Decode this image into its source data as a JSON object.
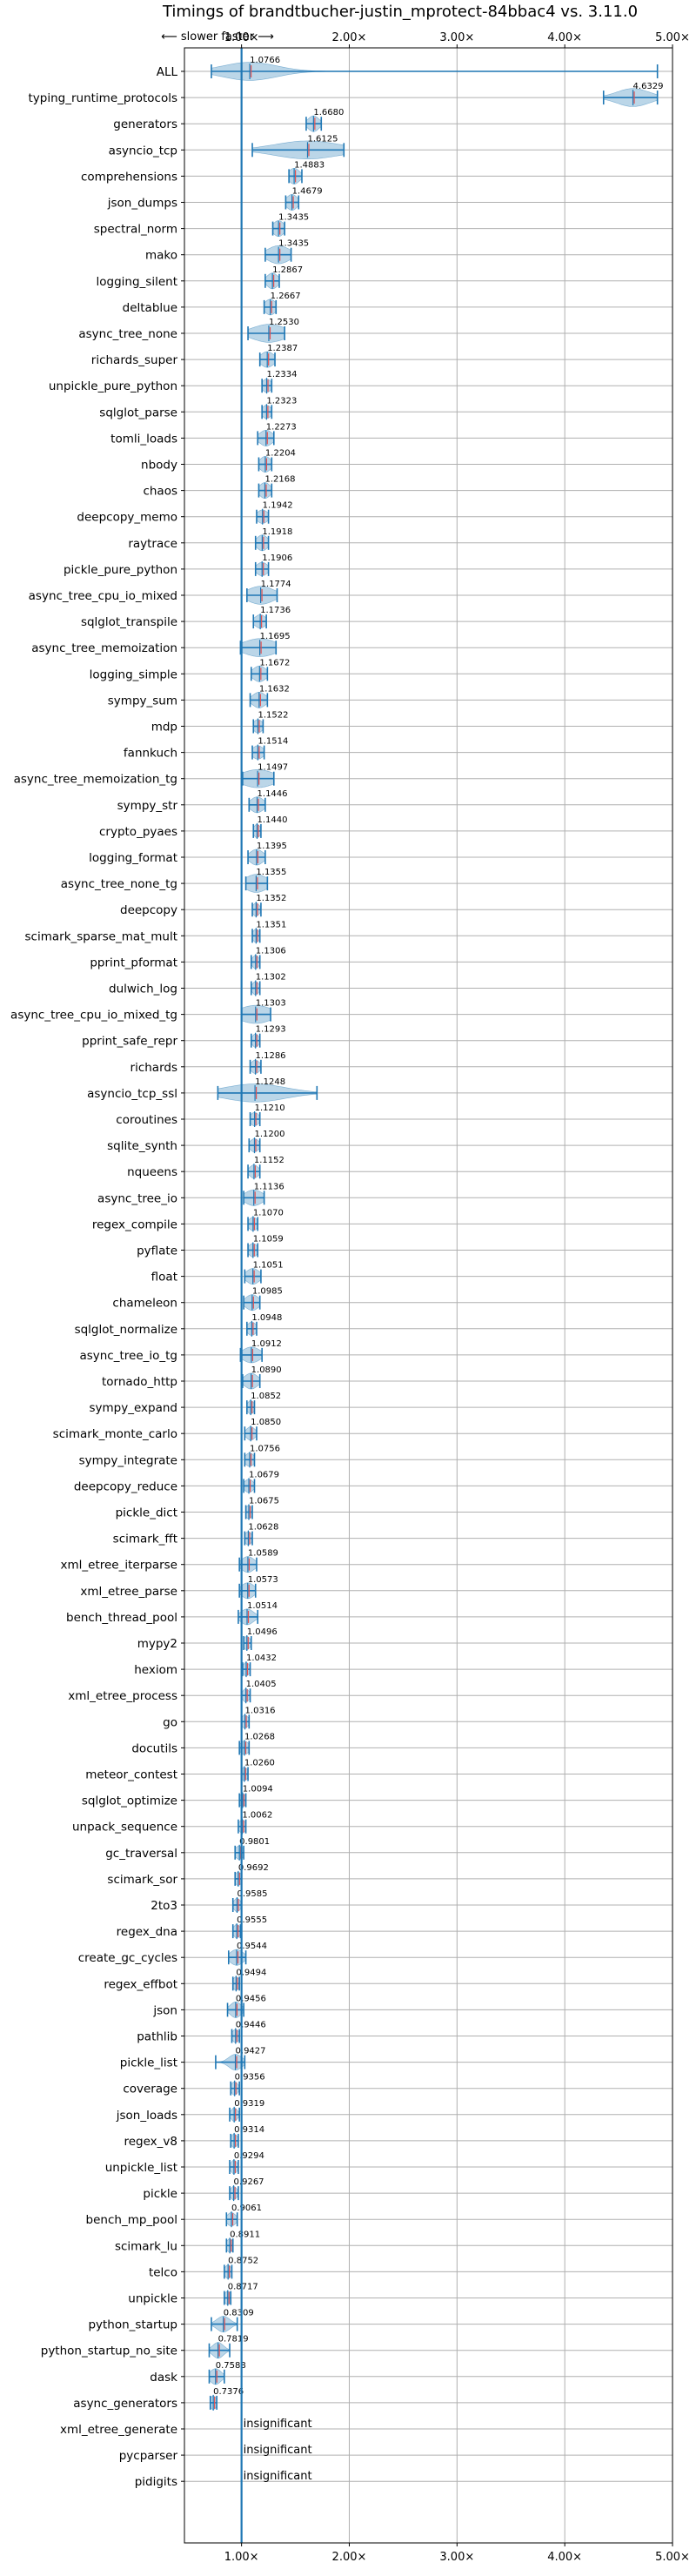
{
  "chart_data": {
    "type": "violin",
    "title": "Timings of brandtbucher-justin_mprotect-84bbac4 vs. 3.11.0",
    "direction_note": "⟵ slower   faster ⟶",
    "x_ticks": [
      {
        "value": 1,
        "label": "1.00×"
      },
      {
        "value": 2,
        "label": "2.00×"
      },
      {
        "value": 3,
        "label": "3.00×"
      },
      {
        "value": 4,
        "label": "4.00×"
      },
      {
        "value": 5,
        "label": "5.00×"
      }
    ],
    "xlim": [
      0.47,
      5.0
    ],
    "grid": true,
    "reference_line": 1.0,
    "insignificant_label": "insignificant",
    "benchmarks": [
      {
        "name": "ALL",
        "value": 1.0766,
        "label": "1.0766",
        "low": 0.72,
        "high": 4.86,
        "spread": 0.25,
        "height": 0.8
      },
      {
        "name": "typing_runtime_protocols",
        "value": 4.6329,
        "label": "4.6329",
        "low": 4.36,
        "high": 4.86,
        "spread": 0.15,
        "height": 0.8
      },
      {
        "name": "generators",
        "value": 1.668,
        "label": "1.6680",
        "low": 1.6,
        "high": 1.74,
        "spread": 0.05,
        "height": 0.7
      },
      {
        "name": "asyncio_tcp",
        "value": 1.6125,
        "label": "1.6125",
        "low": 1.1,
        "high": 1.95,
        "spread": 0.3,
        "height": 0.8
      },
      {
        "name": "comprehensions",
        "value": 1.4883,
        "label": "1.4883",
        "low": 1.44,
        "high": 1.56,
        "spread": 0.05,
        "height": 0.7
      },
      {
        "name": "json_dumps",
        "value": 1.4679,
        "label": "1.4679",
        "low": 1.41,
        "high": 1.53,
        "spread": 0.05,
        "height": 0.7
      },
      {
        "name": "spectral_norm",
        "value": 1.3435,
        "label": "1.3435",
        "low": 1.29,
        "high": 1.4,
        "spread": 0.05,
        "height": 0.7
      },
      {
        "name": "mako",
        "value": 1.3435,
        "label": "1.3435",
        "low": 1.22,
        "high": 1.46,
        "spread": 0.1,
        "height": 0.8
      },
      {
        "name": "logging_silent",
        "value": 1.2867,
        "label": "1.2867",
        "low": 1.22,
        "high": 1.35,
        "spread": 0.05,
        "height": 0.7
      },
      {
        "name": "deltablue",
        "value": 1.2667,
        "label": "1.2667",
        "low": 1.21,
        "high": 1.32,
        "spread": 0.05,
        "height": 0.7
      },
      {
        "name": "async_tree_none",
        "value": 1.253,
        "label": "1.2530",
        "low": 1.06,
        "high": 1.4,
        "spread": 0.15,
        "height": 0.8
      },
      {
        "name": "richards_super",
        "value": 1.2387,
        "label": "1.2387",
        "low": 1.17,
        "high": 1.31,
        "spread": 0.06,
        "height": 0.7
      },
      {
        "name": "unpickle_pure_python",
        "value": 1.2334,
        "label": "1.2334",
        "low": 1.19,
        "high": 1.28,
        "spread": 0.04,
        "height": 0.6
      },
      {
        "name": "sqlglot_parse",
        "value": 1.2323,
        "label": "1.2323",
        "low": 1.19,
        "high": 1.28,
        "spread": 0.04,
        "height": 0.6
      },
      {
        "name": "tomli_loads",
        "value": 1.2273,
        "label": "1.2273",
        "low": 1.15,
        "high": 1.3,
        "spread": 0.06,
        "height": 0.7
      },
      {
        "name": "nbody",
        "value": 1.2204,
        "label": "1.2204",
        "low": 1.16,
        "high": 1.28,
        "spread": 0.05,
        "height": 0.7
      },
      {
        "name": "chaos",
        "value": 1.2168,
        "label": "1.2168",
        "low": 1.16,
        "high": 1.28,
        "spread": 0.05,
        "height": 0.7
      },
      {
        "name": "deepcopy_memo",
        "value": 1.1942,
        "label": "1.1942",
        "low": 1.14,
        "high": 1.25,
        "spread": 0.05,
        "height": 0.6
      },
      {
        "name": "raytrace",
        "value": 1.1918,
        "label": "1.1918",
        "low": 1.13,
        "high": 1.25,
        "spread": 0.05,
        "height": 0.7
      },
      {
        "name": "pickle_pure_python",
        "value": 1.1906,
        "label": "1.1906",
        "low": 1.13,
        "high": 1.25,
        "spread": 0.05,
        "height": 0.6
      },
      {
        "name": "async_tree_cpu_io_mixed",
        "value": 1.1774,
        "label": "1.1774",
        "low": 1.05,
        "high": 1.33,
        "spread": 0.12,
        "height": 0.8
      },
      {
        "name": "sqlglot_transpile",
        "value": 1.1736,
        "label": "1.1736",
        "low": 1.11,
        "high": 1.23,
        "spread": 0.05,
        "height": 0.6
      },
      {
        "name": "async_tree_memoization",
        "value": 1.1695,
        "label": "1.1695",
        "low": 0.99,
        "high": 1.32,
        "spread": 0.15,
        "height": 0.8
      },
      {
        "name": "logging_simple",
        "value": 1.1672,
        "label": "1.1672",
        "low": 1.09,
        "high": 1.24,
        "spread": 0.06,
        "height": 0.7
      },
      {
        "name": "sympy_sum",
        "value": 1.1632,
        "label": "1.1632",
        "low": 1.08,
        "high": 1.24,
        "spread": 0.06,
        "height": 0.7
      },
      {
        "name": "mdp",
        "value": 1.1522,
        "label": "1.1522",
        "low": 1.11,
        "high": 1.2,
        "spread": 0.04,
        "height": 0.6
      },
      {
        "name": "fannkuch",
        "value": 1.1514,
        "label": "1.1514",
        "low": 1.1,
        "high": 1.21,
        "spread": 0.05,
        "height": 0.6
      },
      {
        "name": "async_tree_memoization_tg",
        "value": 1.1497,
        "label": "1.1497",
        "low": 1.01,
        "high": 1.3,
        "spread": 0.15,
        "height": 0.8
      },
      {
        "name": "sympy_str",
        "value": 1.1446,
        "label": "1.1446",
        "low": 1.07,
        "high": 1.22,
        "spread": 0.06,
        "height": 0.7
      },
      {
        "name": "crypto_pyaes",
        "value": 1.144,
        "label": "1.1440",
        "low": 1.11,
        "high": 1.18,
        "spread": 0.03,
        "height": 0.6
      },
      {
        "name": "logging_format",
        "value": 1.1395,
        "label": "1.1395",
        "low": 1.06,
        "high": 1.22,
        "spread": 0.06,
        "height": 0.7
      },
      {
        "name": "async_tree_none_tg",
        "value": 1.1355,
        "label": "1.1355",
        "low": 1.04,
        "high": 1.24,
        "spread": 0.1,
        "height": 0.8
      },
      {
        "name": "deepcopy",
        "value": 1.1352,
        "label": "1.1352",
        "low": 1.1,
        "high": 1.18,
        "spread": 0.03,
        "height": 0.6
      },
      {
        "name": "scimark_sparse_mat_mult",
        "value": 1.1351,
        "label": "1.1351",
        "low": 1.1,
        "high": 1.17,
        "spread": 0.03,
        "height": 0.6
      },
      {
        "name": "pprint_pformat",
        "value": 1.1306,
        "label": "1.1306",
        "low": 1.09,
        "high": 1.17,
        "spread": 0.03,
        "height": 0.6
      },
      {
        "name": "dulwich_log",
        "value": 1.1302,
        "label": "1.1302",
        "low": 1.09,
        "high": 1.17,
        "spread": 0.03,
        "height": 0.6
      },
      {
        "name": "async_tree_cpu_io_mixed_tg",
        "value": 1.1303,
        "label": "1.1303",
        "low": 1.0,
        "high": 1.27,
        "spread": 0.15,
        "height": 0.8
      },
      {
        "name": "pprint_safe_repr",
        "value": 1.1293,
        "label": "1.1293",
        "low": 1.09,
        "high": 1.17,
        "spread": 0.03,
        "height": 0.6
      },
      {
        "name": "richards",
        "value": 1.1286,
        "label": "1.1286",
        "low": 1.08,
        "high": 1.18,
        "spread": 0.04,
        "height": 0.6
      },
      {
        "name": "asyncio_tcp_ssl",
        "value": 1.1248,
        "label": "1.1248",
        "low": 0.78,
        "high": 1.7,
        "spread": 0.28,
        "height": 0.8
      },
      {
        "name": "coroutines",
        "value": 1.121,
        "label": "1.1210",
        "low": 1.08,
        "high": 1.17,
        "spread": 0.04,
        "height": 0.6
      },
      {
        "name": "sqlite_synth",
        "value": 1.12,
        "label": "1.1200",
        "low": 1.07,
        "high": 1.17,
        "spread": 0.04,
        "height": 0.6
      },
      {
        "name": "nqueens",
        "value": 1.1152,
        "label": "1.1152",
        "low": 1.06,
        "high": 1.17,
        "spread": 0.04,
        "height": 0.6
      },
      {
        "name": "async_tree_io",
        "value": 1.1136,
        "label": "1.1136",
        "low": 1.02,
        "high": 1.21,
        "spread": 0.08,
        "height": 0.7
      },
      {
        "name": "regex_compile",
        "value": 1.107,
        "label": "1.1070",
        "low": 1.06,
        "high": 1.15,
        "spread": 0.04,
        "height": 0.6
      },
      {
        "name": "pyflate",
        "value": 1.1059,
        "label": "1.1059",
        "low": 1.06,
        "high": 1.15,
        "spread": 0.04,
        "height": 0.6
      },
      {
        "name": "float",
        "value": 1.1051,
        "label": "1.1051",
        "low": 1.03,
        "high": 1.18,
        "spread": 0.06,
        "height": 0.7
      },
      {
        "name": "chameleon",
        "value": 1.0985,
        "label": "1.0985",
        "low": 1.02,
        "high": 1.17,
        "spread": 0.06,
        "height": 0.7
      },
      {
        "name": "sqlglot_normalize",
        "value": 1.0948,
        "label": "1.0948",
        "low": 1.05,
        "high": 1.14,
        "spread": 0.04,
        "height": 0.6
      },
      {
        "name": "async_tree_io_tg",
        "value": 1.0912,
        "label": "1.0912",
        "low": 0.99,
        "high": 1.19,
        "spread": 0.08,
        "height": 0.7
      },
      {
        "name": "tornado_http",
        "value": 1.089,
        "label": "1.0890",
        "low": 1.01,
        "high": 1.17,
        "spread": 0.06,
        "height": 0.7
      },
      {
        "name": "sympy_expand",
        "value": 1.0852,
        "label": "1.0852",
        "low": 1.05,
        "high": 1.12,
        "spread": 0.03,
        "height": 0.6
      },
      {
        "name": "scimark_monte_carlo",
        "value": 1.085,
        "label": "1.0850",
        "low": 1.03,
        "high": 1.14,
        "spread": 0.04,
        "height": 0.6
      },
      {
        "name": "sympy_integrate",
        "value": 1.0756,
        "label": "1.0756",
        "low": 1.03,
        "high": 1.12,
        "spread": 0.04,
        "height": 0.6
      },
      {
        "name": "deepcopy_reduce",
        "value": 1.0679,
        "label": "1.0679",
        "low": 1.02,
        "high": 1.12,
        "spread": 0.04,
        "height": 0.6
      },
      {
        "name": "pickle_dict",
        "value": 1.0675,
        "label": "1.0675",
        "low": 1.04,
        "high": 1.1,
        "spread": 0.03,
        "height": 0.6
      },
      {
        "name": "scimark_fft",
        "value": 1.0628,
        "label": "1.0628",
        "low": 1.03,
        "high": 1.1,
        "spread": 0.03,
        "height": 0.6
      },
      {
        "name": "xml_etree_iterparse",
        "value": 1.0589,
        "label": "1.0589",
        "low": 0.98,
        "high": 1.14,
        "spread": 0.06,
        "height": 0.7
      },
      {
        "name": "xml_etree_parse",
        "value": 1.0573,
        "label": "1.0573",
        "low": 0.98,
        "high": 1.13,
        "spread": 0.06,
        "height": 0.7
      },
      {
        "name": "bench_thread_pool",
        "value": 1.0514,
        "label": "1.0514",
        "low": 0.97,
        "high": 1.15,
        "spread": 0.06,
        "height": 0.7
      },
      {
        "name": "mypy2",
        "value": 1.0496,
        "label": "1.0496",
        "low": 1.02,
        "high": 1.09,
        "spread": 0.03,
        "height": 0.6
      },
      {
        "name": "hexiom",
        "value": 1.0432,
        "label": "1.0432",
        "low": 1.01,
        "high": 1.08,
        "spread": 0.03,
        "height": 0.6
      },
      {
        "name": "xml_etree_process",
        "value": 1.0405,
        "label": "1.0405",
        "low": 1.0,
        "high": 1.08,
        "spread": 0.03,
        "height": 0.6
      },
      {
        "name": "go",
        "value": 1.0316,
        "label": "1.0316",
        "low": 1.0,
        "high": 1.07,
        "spread": 0.03,
        "height": 0.6
      },
      {
        "name": "docutils",
        "value": 1.0268,
        "label": "1.0268",
        "low": 0.98,
        "high": 1.07,
        "spread": 0.04,
        "height": 0.6
      },
      {
        "name": "meteor_contest",
        "value": 1.026,
        "label": "1.0260",
        "low": 1.0,
        "high": 1.06,
        "spread": 0.03,
        "height": 0.6
      },
      {
        "name": "sqlglot_optimize",
        "value": 1.0094,
        "label": "1.0094",
        "low": 0.98,
        "high": 1.04,
        "spread": 0.03,
        "height": 0.6
      },
      {
        "name": "unpack_sequence",
        "value": 1.0062,
        "label": "1.0062",
        "low": 0.97,
        "high": 1.04,
        "spread": 0.03,
        "height": 0.6
      },
      {
        "name": "gc_traversal",
        "value": 0.9801,
        "label": "0.9801",
        "low": 0.94,
        "high": 1.02,
        "spread": 0.04,
        "height": 0.6
      },
      {
        "name": "scimark_sor",
        "value": 0.9692,
        "label": "0.9692",
        "low": 0.94,
        "high": 1.0,
        "spread": 0.03,
        "height": 0.6
      },
      {
        "name": "2to3",
        "value": 0.9585,
        "label": "0.9585",
        "low": 0.92,
        "high": 1.0,
        "spread": 0.03,
        "height": 0.6
      },
      {
        "name": "regex_dna",
        "value": 0.9555,
        "label": "0.9555",
        "low": 0.92,
        "high": 0.99,
        "spread": 0.03,
        "height": 0.6
      },
      {
        "name": "create_gc_cycles",
        "value": 0.9544,
        "label": "0.9544",
        "low": 0.88,
        "high": 1.04,
        "spread": 0.06,
        "height": 0.7
      },
      {
        "name": "regex_effbot",
        "value": 0.9494,
        "label": "0.9494",
        "low": 0.92,
        "high": 0.98,
        "spread": 0.03,
        "height": 0.6
      },
      {
        "name": "json",
        "value": 0.9456,
        "label": "0.9456",
        "low": 0.87,
        "high": 1.02,
        "spread": 0.05,
        "height": 0.7
      },
      {
        "name": "pathlib",
        "value": 0.9446,
        "label": "0.9446",
        "low": 0.91,
        "high": 0.98,
        "spread": 0.03,
        "height": 0.6
      },
      {
        "name": "pickle_list",
        "value": 0.9427,
        "label": "0.9427",
        "low": 0.76,
        "high": 1.03,
        "spread": 0.06,
        "height": 0.7
      },
      {
        "name": "coverage",
        "value": 0.9356,
        "label": "0.9356",
        "low": 0.9,
        "high": 0.98,
        "spread": 0.03,
        "height": 0.6
      },
      {
        "name": "json_loads",
        "value": 0.9319,
        "label": "0.9319",
        "low": 0.89,
        "high": 0.98,
        "spread": 0.03,
        "height": 0.6
      },
      {
        "name": "regex_v8",
        "value": 0.9314,
        "label": "0.9314",
        "low": 0.9,
        "high": 0.97,
        "spread": 0.03,
        "height": 0.6
      },
      {
        "name": "unpickle_list",
        "value": 0.9294,
        "label": "0.9294",
        "low": 0.89,
        "high": 0.97,
        "spread": 0.03,
        "height": 0.6
      },
      {
        "name": "pickle",
        "value": 0.9267,
        "label": "0.9267",
        "low": 0.89,
        "high": 0.97,
        "spread": 0.03,
        "height": 0.6
      },
      {
        "name": "bench_mp_pool",
        "value": 0.9061,
        "label": "0.9061",
        "low": 0.86,
        "high": 0.96,
        "spread": 0.04,
        "height": 0.6
      },
      {
        "name": "scimark_lu",
        "value": 0.8911,
        "label": "0.8911",
        "low": 0.86,
        "high": 0.92,
        "spread": 0.03,
        "height": 0.6
      },
      {
        "name": "telco",
        "value": 0.8752,
        "label": "0.8752",
        "low": 0.84,
        "high": 0.91,
        "spread": 0.03,
        "height": 0.6
      },
      {
        "name": "unpickle",
        "value": 0.8717,
        "label": "0.8717",
        "low": 0.84,
        "high": 0.9,
        "spread": 0.03,
        "height": 0.6
      },
      {
        "name": "python_startup",
        "value": 0.8309,
        "label": "0.8309",
        "low": 0.72,
        "high": 0.96,
        "spread": 0.06,
        "height": 0.7
      },
      {
        "name": "python_startup_no_site",
        "value": 0.7819,
        "label": "0.7819",
        "low": 0.7,
        "high": 0.89,
        "spread": 0.05,
        "height": 0.7
      },
      {
        "name": "dask",
        "value": 0.7588,
        "label": "0.7588",
        "low": 0.7,
        "high": 0.84,
        "spread": 0.05,
        "height": 0.7
      },
      {
        "name": "async_generators",
        "value": 0.7376,
        "label": "0.7376",
        "low": 0.71,
        "high": 0.77,
        "spread": 0.03,
        "height": 0.6
      },
      {
        "name": "xml_etree_generate",
        "value": null,
        "label": "",
        "insignificant": true
      },
      {
        "name": "pycparser",
        "value": null,
        "label": "",
        "insignificant": true
      },
      {
        "name": "pidigits",
        "value": null,
        "label": "",
        "insignificant": true
      }
    ]
  }
}
